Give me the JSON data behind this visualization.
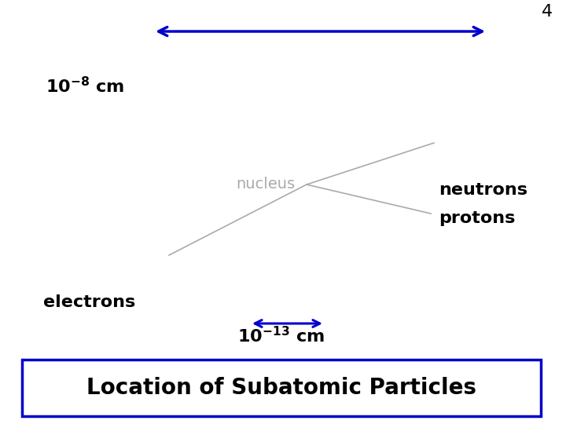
{
  "title": "Location of Subatomic Particles",
  "title_fontsize": 20,
  "title_color": "#000000",
  "title_box_color": "#0000CC",
  "background_color": "#ffffff",
  "label_electrons": "electrons",
  "label_protons": "protons",
  "label_neutrons": "neutrons",
  "label_nucleus": "nucleus",
  "label_page_num": "4",
  "blue_color": "#0000CC",
  "gray_color": "#aaaaaa",
  "black_color": "#000000",
  "line_color": "#aaaaaa",
  "fontsize_labels": 16,
  "fontsize_nucleus": 14,
  "fontsize_exp": 9
}
